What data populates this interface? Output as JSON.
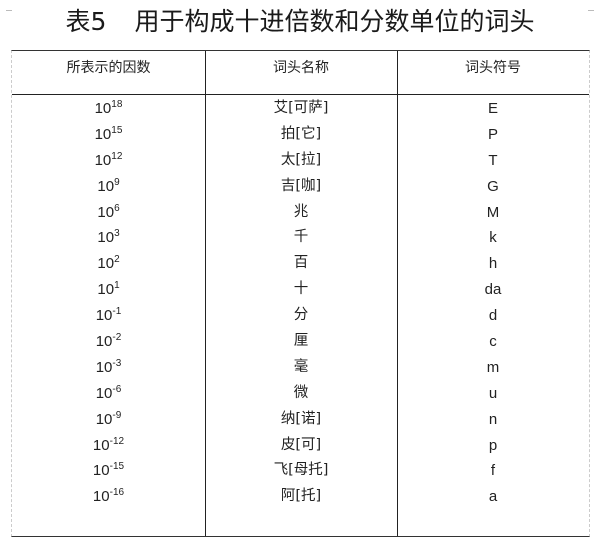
{
  "title": {
    "number": "表5",
    "text": "用于构成十进倍数和分数单位的词头"
  },
  "headers": [
    "所表示的因数",
    "词头名称",
    "词头符号"
  ],
  "rows": [
    {
      "base": "10",
      "exp": "18",
      "name": "艾[可萨]",
      "symbol": "E"
    },
    {
      "base": "10",
      "exp": "15",
      "name": "拍[它]",
      "symbol": "P"
    },
    {
      "base": "10",
      "exp": "12",
      "name": "太[拉]",
      "symbol": "T"
    },
    {
      "base": "10",
      "exp": "9",
      "name": "吉[咖]",
      "symbol": "G"
    },
    {
      "base": "10",
      "exp": "6",
      "name": "兆",
      "symbol": "M"
    },
    {
      "base": "10",
      "exp": "3",
      "name": "千",
      "symbol": "k"
    },
    {
      "base": "10",
      "exp": "2",
      "name": "百",
      "symbol": "h"
    },
    {
      "base": "10",
      "exp": "1",
      "name": "十",
      "symbol": "da"
    },
    {
      "base": "10",
      "exp": "-1",
      "name": "分",
      "symbol": "d"
    },
    {
      "base": "10",
      "exp": "-2",
      "name": "厘",
      "symbol": "c"
    },
    {
      "base": "10",
      "exp": "-3",
      "name": "毫",
      "symbol": "m"
    },
    {
      "base": "10",
      "exp": "-6",
      "name": "微",
      "symbol": "u"
    },
    {
      "base": "10",
      "exp": "-9",
      "name": "纳[诺]",
      "symbol": "n"
    },
    {
      "base": "10",
      "exp": "-12",
      "name": "皮[可]",
      "symbol": "p"
    },
    {
      "base": "10",
      "exp": "-15",
      "name": "飞[母托]",
      "symbol": "f"
    },
    {
      "base": "10",
      "exp": "-16",
      "name": "阿[托]",
      "symbol": "a"
    }
  ]
}
